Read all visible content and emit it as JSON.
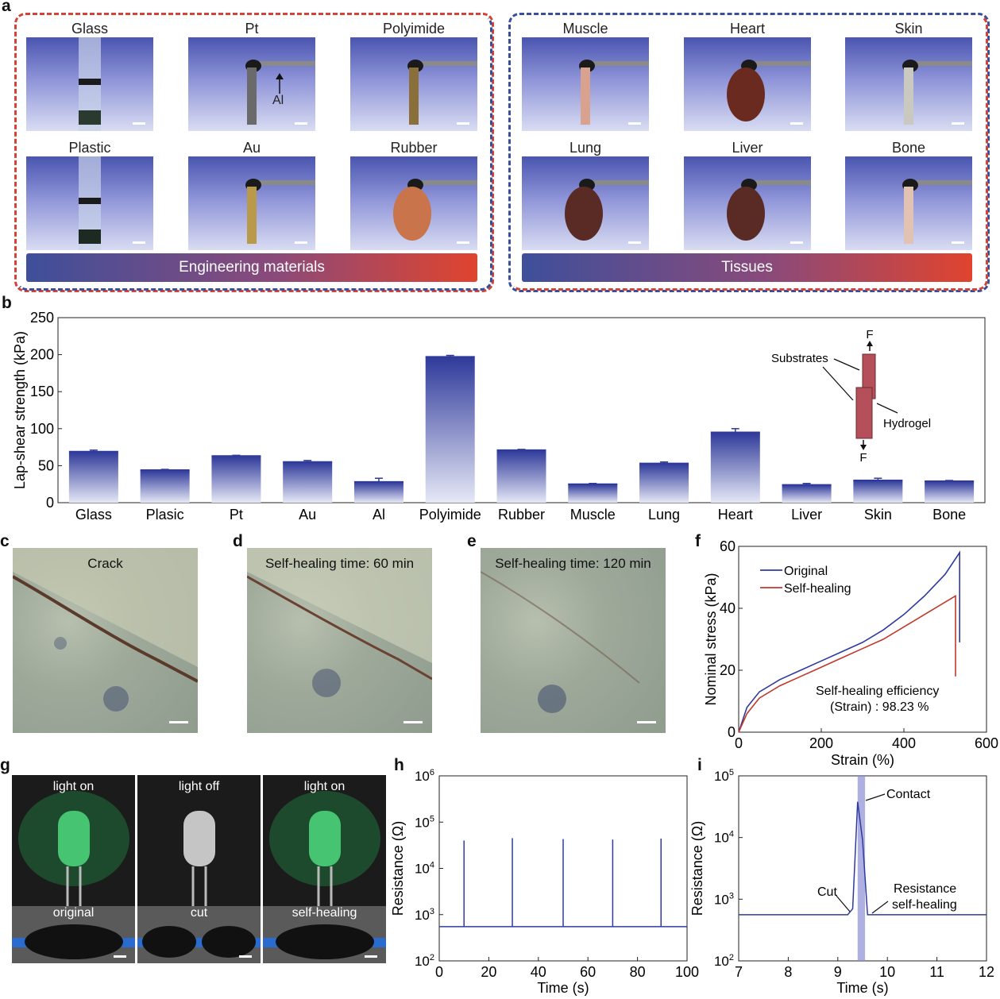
{
  "panels": {
    "a": "a",
    "b": "b",
    "c": "c",
    "d": "d",
    "e": "e",
    "f": "f",
    "g": "g",
    "h": "h",
    "i": "i"
  },
  "panel_a": {
    "engineering_row1": [
      "Glass",
      "Pt",
      "Polyimide"
    ],
    "engineering_row2": [
      "Plastic",
      "Au",
      "Rubber"
    ],
    "tissue_row1": [
      "Muscle",
      "Heart",
      "Skin"
    ],
    "tissue_row2": [
      "Lung",
      "Liver",
      "Bone"
    ],
    "al_label": "Al",
    "engineering_band": "Engineering materials",
    "tissue_band": "Tissues"
  },
  "panel_c": {
    "caption": "Crack"
  },
  "panel_d": {
    "caption": "Self-healing time: 60 min"
  },
  "panel_e": {
    "caption": "Self-healing time: 120 min"
  },
  "panel_g": {
    "captions_top": [
      "light on",
      "light off",
      "light on"
    ],
    "captions_bottom": [
      "original",
      "cut",
      "self-healing"
    ]
  },
  "chart_data": [
    {
      "panel": "b",
      "type": "bar",
      "categories": [
        "Glass",
        "Plasic",
        "Pt",
        "Au",
        "Al",
        "Polyimide",
        "Rubber",
        "Muscle",
        "Lung",
        "Heart",
        "Liver",
        "Skin",
        "Bone"
      ],
      "values": [
        69,
        44,
        63,
        55,
        28,
        197,
        71,
        25,
        53,
        95,
        24,
        30,
        29
      ],
      "errors": [
        2,
        1,
        1,
        2,
        5,
        2,
        1,
        1,
        2,
        5,
        2,
        3,
        1
      ],
      "ylabel": "Lap-shear strength (kPa)",
      "ylim": [
        0,
        250
      ],
      "yticks": [
        0,
        50,
        100,
        150,
        200,
        250
      ],
      "inset": {
        "force_top": "F",
        "force_bottom": "F",
        "substrates": "Substrates",
        "hydrogel": "Hydrogel"
      }
    },
    {
      "panel": "f",
      "type": "line",
      "xlabel": "Strain (%)",
      "ylabel": "Nominal stress (kPa)",
      "xlim": [
        0,
        600
      ],
      "ylim": [
        0,
        60
      ],
      "xticks": [
        0,
        200,
        400,
        600
      ],
      "yticks": [
        0,
        20,
        40,
        60
      ],
      "series": [
        {
          "name": "Original",
          "color": "#2f3aa0",
          "x": [
            0,
            20,
            50,
            100,
            150,
            200,
            250,
            300,
            350,
            400,
            450,
            500,
            535,
            535
          ],
          "y": [
            0,
            8,
            13,
            17,
            20,
            23,
            26,
            29,
            33,
            38,
            44,
            51,
            58,
            29
          ]
        },
        {
          "name": "Self-healing",
          "color": "#c0392b",
          "x": [
            0,
            20,
            50,
            100,
            150,
            200,
            250,
            300,
            350,
            400,
            450,
            500,
            525,
            525
          ],
          "y": [
            0,
            6,
            11,
            15,
            18,
            21,
            24,
            27,
            30,
            34,
            38,
            42,
            44,
            18
          ]
        }
      ],
      "annotation": [
        "Self-healing efficiency",
        "(Strain) : 98.23 %"
      ]
    },
    {
      "panel": "h",
      "type": "line",
      "xlabel": "Time (s)",
      "ylabel": "Resistance (Ω)",
      "scale": "log",
      "xlim": [
        0,
        100
      ],
      "ylim_exp": [
        2,
        6
      ],
      "xticks": [
        0,
        20,
        40,
        60,
        80,
        100
      ],
      "ytick_exps": [
        2,
        3,
        4,
        5,
        6
      ],
      "baseline": 550,
      "spikes": [
        {
          "x": 10,
          "y": 40000
        },
        {
          "x": 29.5,
          "y": 45000
        },
        {
          "x": 50,
          "y": 43000
        },
        {
          "x": 70,
          "y": 42000
        },
        {
          "x": 89.5,
          "y": 44000
        }
      ],
      "color": "#2f3aa0"
    },
    {
      "panel": "i",
      "type": "line",
      "xlabel": "Time (s)",
      "ylabel": "Resistance (Ω)",
      "scale": "log",
      "xlim": [
        7,
        12
      ],
      "ylim_exp": [
        2,
        5
      ],
      "xticks": [
        7,
        8,
        9,
        10,
        11,
        12
      ],
      "ytick_exps": [
        2,
        3,
        4,
        5
      ],
      "x": [
        7,
        9.2,
        9.3,
        9.4,
        9.5,
        9.6,
        12
      ],
      "y": [
        560,
        560,
        700,
        38000,
        9000,
        560,
        560
      ],
      "highlight": [
        9.4,
        9.55
      ],
      "color": "#2f3aa0",
      "annotations": {
        "contact": "Contact",
        "cut": "Cut",
        "heal": [
          "Resistance",
          "self-healing"
        ]
      }
    }
  ]
}
